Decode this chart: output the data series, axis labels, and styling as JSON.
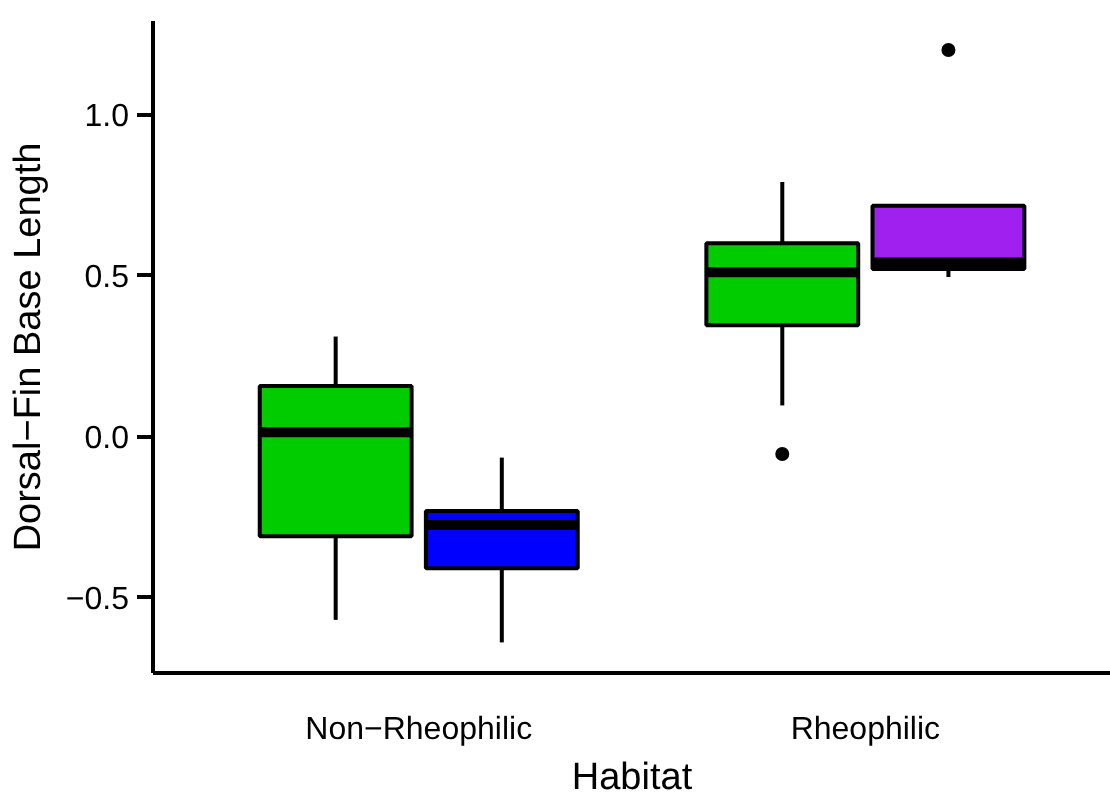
{
  "chart_data": {
    "type": "box",
    "xlabel": "Habitat",
    "ylabel": "Dorsal−Fin Base Length",
    "categories": [
      "Non−Rheophilic",
      "Rheophilic"
    ],
    "ylim": [
      -0.735,
      1.29
    ],
    "yticks": [
      {
        "value": -0.5,
        "label": "−0.5"
      },
      {
        "value": 0.0,
        "label": "0.0"
      },
      {
        "value": 0.5,
        "label": "0.5"
      },
      {
        "value": 1.0,
        "label": "1.0"
      }
    ],
    "series": [
      {
        "colors": [
          "#00cc00",
          "#00cc00"
        ],
        "boxes": [
          {
            "low": -0.57,
            "q1": -0.31,
            "median": 0.013,
            "q3": 0.156,
            "high": 0.31
          },
          {
            "low": 0.096,
            "q1": 0.345,
            "median": 0.51,
            "q3": 0.6,
            "high": 0.79,
            "outliers": [
              -0.055
            ]
          }
        ]
      },
      {
        "colors": [
          "#0000ff",
          "#a020f0"
        ],
        "boxes": [
          {
            "low": -0.64,
            "q1": -0.41,
            "median": -0.275,
            "q3": -0.232,
            "high": -0.066
          },
          {
            "low": 0.495,
            "q1": 0.52,
            "median": 0.54,
            "q3": 0.716,
            "high": 0.716,
            "outliers": [
              1.2
            ]
          }
        ]
      }
    ]
  }
}
